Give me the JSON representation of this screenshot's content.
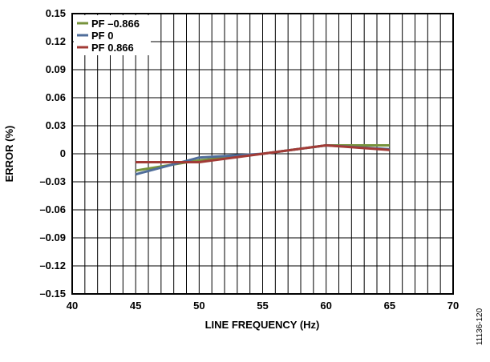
{
  "chart_data": {
    "type": "line",
    "title": "",
    "xlabel": "LINE FREQUENCY (Hz)",
    "ylabel": "ERROR (%)",
    "xlim": [
      40,
      70
    ],
    "ylim": [
      -0.15,
      0.15
    ],
    "x_ticks": [
      40,
      45,
      50,
      55,
      60,
      65,
      70
    ],
    "x_tick_labels": [
      "40",
      "45",
      "50",
      "55",
      "60",
      "65",
      "70"
    ],
    "y_ticks": [
      0.15,
      0.12,
      0.09,
      0.06,
      0.03,
      0,
      -0.03,
      -0.06,
      -0.09,
      -0.12,
      -0.15
    ],
    "y_tick_labels": [
      "0.15",
      "0.12",
      "0.09",
      "0.06",
      "0.03",
      "0",
      "–0.03",
      "–0.06",
      "–0.09",
      "–0.12",
      "–0.15"
    ],
    "grid": true,
    "legend_position": "top-left",
    "series": [
      {
        "name": "PF –0.866",
        "color": "#77933c",
        "x": [
          45,
          50,
          55,
          60,
          65
        ],
        "values": [
          -0.018,
          -0.007,
          0.0,
          0.009,
          0.009
        ]
      },
      {
        "name": "PF 0",
        "color": "#4f6d9a",
        "x": [
          45,
          50,
          55,
          60,
          65
        ],
        "values": [
          -0.022,
          -0.004,
          0.0,
          0.009,
          0.005
        ]
      },
      {
        "name": "PF 0.866",
        "color": "#a23b36",
        "x": [
          45,
          50,
          55,
          60,
          65
        ],
        "values": [
          -0.009,
          -0.009,
          0.0,
          0.009,
          0.004
        ]
      }
    ]
  },
  "figure_id": "11136-120"
}
